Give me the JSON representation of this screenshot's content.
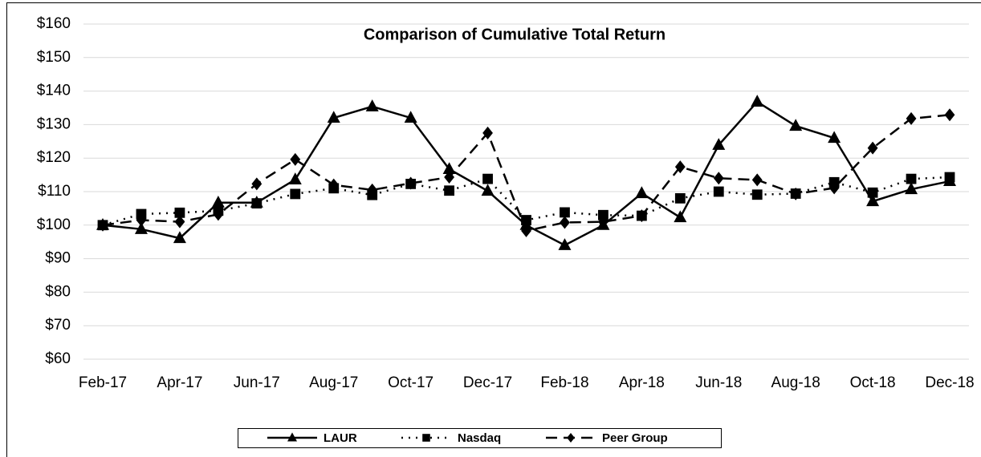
{
  "chart_data": {
    "type": "line",
    "title": "Comparison of Cumulative Total Return",
    "categories": [
      "Feb-17",
      null,
      "Apr-17",
      null,
      "Jun-17",
      null,
      "Aug-17",
      null,
      "Oct-17",
      null,
      "Dec-17",
      null,
      "Feb-18",
      null,
      "Apr-18",
      null,
      "Jun-18",
      null,
      "Aug-18",
      null,
      "Oct-18",
      null,
      "Dec-18"
    ],
    "series": [
      {
        "name": "LAUR",
        "color": "#000000",
        "dash": "solid",
        "marker": "triangle",
        "values": [
          100,
          98.8,
          96.1,
          106.7,
          106.7,
          113.6,
          132,
          135.4,
          132,
          116.7,
          110.2,
          100,
          94,
          100,
          109.5,
          102.3,
          123.9,
          136.8,
          129.6,
          126,
          107.1,
          110.7,
          113.1
        ]
      },
      {
        "name": "Nasdaq",
        "color": "#000000",
        "dash": "dotted",
        "marker": "square",
        "values": [
          100,
          103.3,
          103.7,
          104.3,
          106.5,
          109.3,
          111,
          109,
          112.3,
          110.3,
          113.8,
          101.5,
          103.8,
          103,
          102.8,
          108,
          110,
          109.1,
          109.4,
          112.8,
          109.7,
          113.8,
          114.3
        ]
      },
      {
        "name": "Peer Group",
        "color": "#000000",
        "dash": "dashed",
        "marker": "diamond",
        "values": [
          100,
          101.5,
          101,
          103.2,
          112.3,
          119.6,
          112,
          110.5,
          112.5,
          114.3,
          127.5,
          98.3,
          100.8,
          101,
          102.8,
          117.4,
          114,
          113.5,
          109.3,
          111.1,
          123,
          131.8,
          132.9
        ]
      }
    ],
    "ylim": [
      60,
      160
    ],
    "yticks": [
      {
        "value": 60,
        "label": "$60"
      },
      {
        "value": 70,
        "label": "$70"
      },
      {
        "value": 80,
        "label": "$80"
      },
      {
        "value": 90,
        "label": "$90"
      },
      {
        "value": 100,
        "label": "$100"
      },
      {
        "value": 110,
        "label": "$110"
      },
      {
        "value": 120,
        "label": "$120"
      },
      {
        "value": 130,
        "label": "$130"
      },
      {
        "value": 140,
        "label": "$140"
      },
      {
        "value": 150,
        "label": "$150"
      },
      {
        "value": 160,
        "label": "$160"
      }
    ],
    "grid": true,
    "legend": "bottom"
  }
}
